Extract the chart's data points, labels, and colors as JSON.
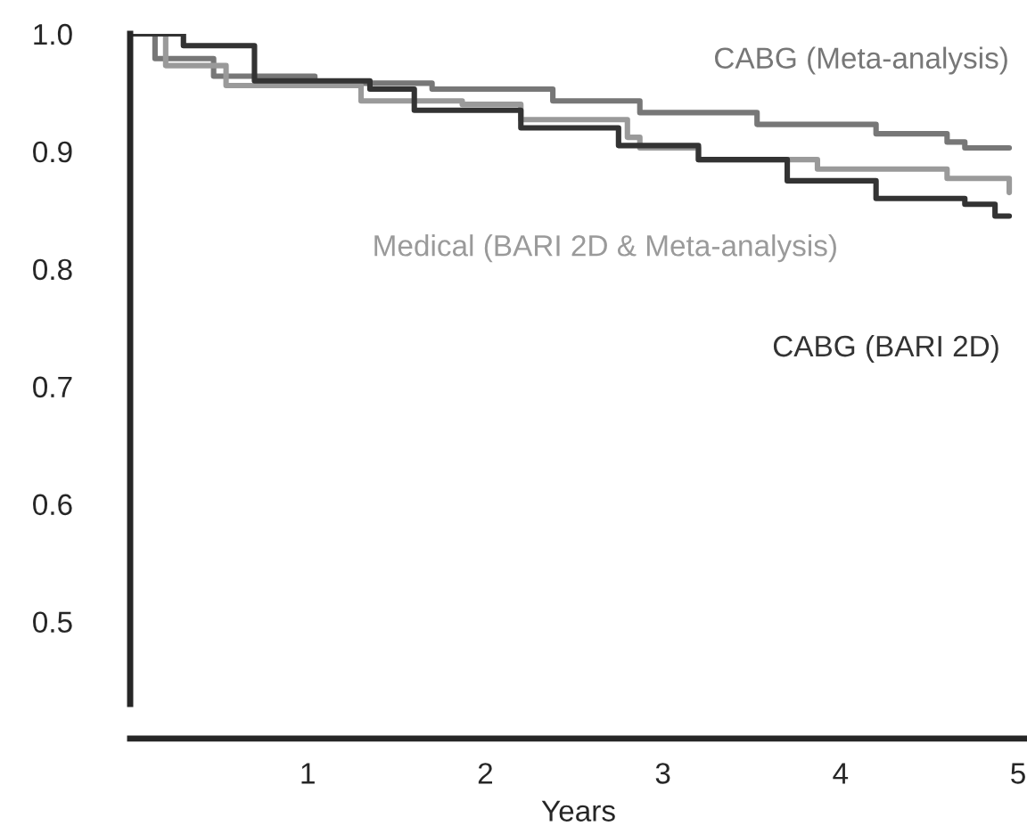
{
  "chart_data": {
    "type": "step",
    "xlabel": "Years",
    "xlim": [
      0,
      5.05
    ],
    "ylim": [
      0.43,
      1.0
    ],
    "xticks": [
      1,
      2,
      3,
      4,
      5
    ],
    "yticks": [
      {
        "value": 0.5,
        "label": "0.5"
      },
      {
        "value": 0.6,
        "label": "0.6"
      },
      {
        "value": 0.7,
        "label": "0.7"
      },
      {
        "value": 0.8,
        "label": "0.8"
      },
      {
        "value": 0.9,
        "label": "0.9"
      },
      {
        "value": 1.0,
        "label": "1.0"
      }
    ],
    "grid": false,
    "legend": false,
    "series": [
      {
        "name": "CABG (Meta-analysis)",
        "color": "#777777",
        "x": [
          0,
          0.14,
          0.47,
          1.04,
          1.7,
          2.38,
          2.87,
          3.53,
          4.2,
          4.6,
          4.7,
          4.95
        ],
        "values": [
          1.0,
          0.979,
          0.964,
          0.958,
          0.953,
          0.943,
          0.933,
          0.923,
          0.915,
          0.908,
          0.903,
          0.903
        ]
      },
      {
        "name": "Medical (BARI 2D & Meta-analysis)",
        "color": "#9a9a9a",
        "x": [
          0,
          0.2,
          0.54,
          1.3,
          1.87,
          2.2,
          2.8,
          2.87,
          3.2,
          3.87,
          4.6,
          4.95
        ],
        "values": [
          1.0,
          0.973,
          0.956,
          0.943,
          0.94,
          0.927,
          0.912,
          0.903,
          0.893,
          0.885,
          0.877,
          0.865
        ]
      },
      {
        "name": "CABG (BARI 2D)",
        "color": "#333333",
        "x": [
          0,
          0.3,
          0.7,
          1.35,
          1.6,
          2.2,
          2.75,
          3.2,
          3.7,
          4.2,
          4.7,
          4.87,
          4.95
        ],
        "values": [
          1.0,
          0.99,
          0.96,
          0.953,
          0.935,
          0.92,
          0.905,
          0.893,
          0.875,
          0.86,
          0.855,
          0.845,
          0.845
        ]
      }
    ]
  }
}
